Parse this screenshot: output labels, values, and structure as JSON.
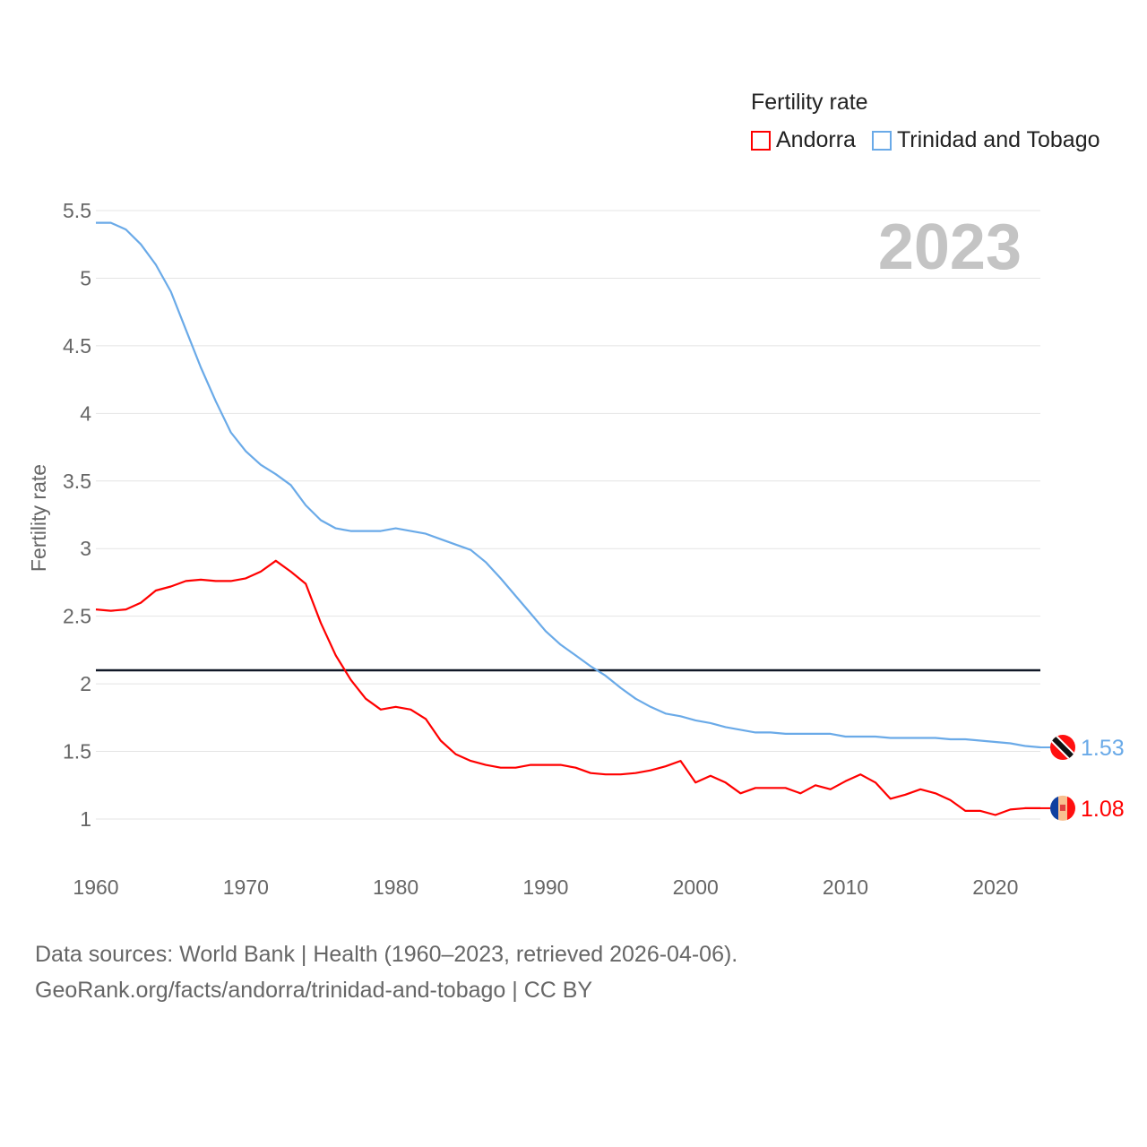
{
  "chart_data": {
    "type": "line",
    "title": "Fertility rate",
    "ylabel": "Fertility rate",
    "xlabel": "",
    "year_label": "2023",
    "ylim": [
      0.75,
      5.5
    ],
    "xlim": [
      1960,
      2023
    ],
    "grid": true,
    "legend_position": "top-right",
    "x_ticks": [
      "1960",
      "1970",
      "1980",
      "1990",
      "2000",
      "2010",
      "2020"
    ],
    "y_ticks": [
      "1",
      "1.5",
      "2",
      "2.5",
      "3",
      "3.5",
      "4",
      "4.5",
      "5",
      "5.5"
    ],
    "reference_line": 2.1,
    "x": [
      1960,
      1961,
      1962,
      1963,
      1964,
      1965,
      1966,
      1967,
      1968,
      1969,
      1970,
      1971,
      1972,
      1973,
      1974,
      1975,
      1976,
      1977,
      1978,
      1979,
      1980,
      1981,
      1982,
      1983,
      1984,
      1985,
      1986,
      1987,
      1988,
      1989,
      1990,
      1991,
      1992,
      1993,
      1994,
      1995,
      1996,
      1997,
      1998,
      1999,
      2000,
      2001,
      2002,
      2003,
      2004,
      2005,
      2006,
      2007,
      2008,
      2009,
      2010,
      2011,
      2012,
      2013,
      2014,
      2015,
      2016,
      2017,
      2018,
      2019,
      2020,
      2021,
      2022,
      2023
    ],
    "series": [
      {
        "name": "Andorra",
        "color": "#ff0000",
        "end_label": "1.08",
        "values": [
          2.55,
          2.54,
          2.55,
          2.6,
          2.69,
          2.72,
          2.76,
          2.77,
          2.76,
          2.76,
          2.78,
          2.83,
          2.91,
          2.83,
          2.74,
          2.45,
          2.21,
          2.03,
          1.89,
          1.81,
          1.83,
          1.81,
          1.74,
          1.58,
          1.48,
          1.43,
          1.4,
          1.38,
          1.38,
          1.4,
          1.4,
          1.4,
          1.38,
          1.34,
          1.33,
          1.33,
          1.34,
          1.36,
          1.39,
          1.43,
          1.27,
          1.32,
          1.27,
          1.19,
          1.23,
          1.23,
          1.23,
          1.19,
          1.25,
          1.22,
          1.28,
          1.33,
          1.27,
          1.15,
          1.18,
          1.22,
          1.19,
          1.14,
          1.06,
          1.06,
          1.03,
          1.07,
          1.08,
          1.08
        ]
      },
      {
        "name": "Trinidad and Tobago",
        "color": "#6aaae8",
        "end_label": "1.53",
        "values": [
          5.41,
          5.41,
          5.36,
          5.25,
          5.1,
          4.9,
          4.62,
          4.34,
          4.09,
          3.86,
          3.72,
          3.62,
          3.55,
          3.47,
          3.32,
          3.21,
          3.15,
          3.13,
          3.13,
          3.13,
          3.15,
          3.13,
          3.11,
          3.07,
          3.03,
          2.99,
          2.9,
          2.78,
          2.65,
          2.52,
          2.39,
          2.29,
          2.21,
          2.13,
          2.06,
          1.97,
          1.89,
          1.83,
          1.78,
          1.76,
          1.73,
          1.71,
          1.68,
          1.66,
          1.64,
          1.64,
          1.63,
          1.63,
          1.63,
          1.63,
          1.61,
          1.61,
          1.61,
          1.6,
          1.6,
          1.6,
          1.6,
          1.59,
          1.59,
          1.58,
          1.57,
          1.56,
          1.54,
          1.53
        ]
      }
    ]
  },
  "legend": {
    "title": "Fertility rate",
    "items": [
      "Andorra",
      "Trinidad and Tobago"
    ]
  },
  "footer": {
    "line1": "Data sources: World Bank | Health (1960–2023, retrieved 2026-04-06).",
    "line2": "GeoRank.org/facts/andorra/trinidad-and-tobago | CC BY"
  }
}
